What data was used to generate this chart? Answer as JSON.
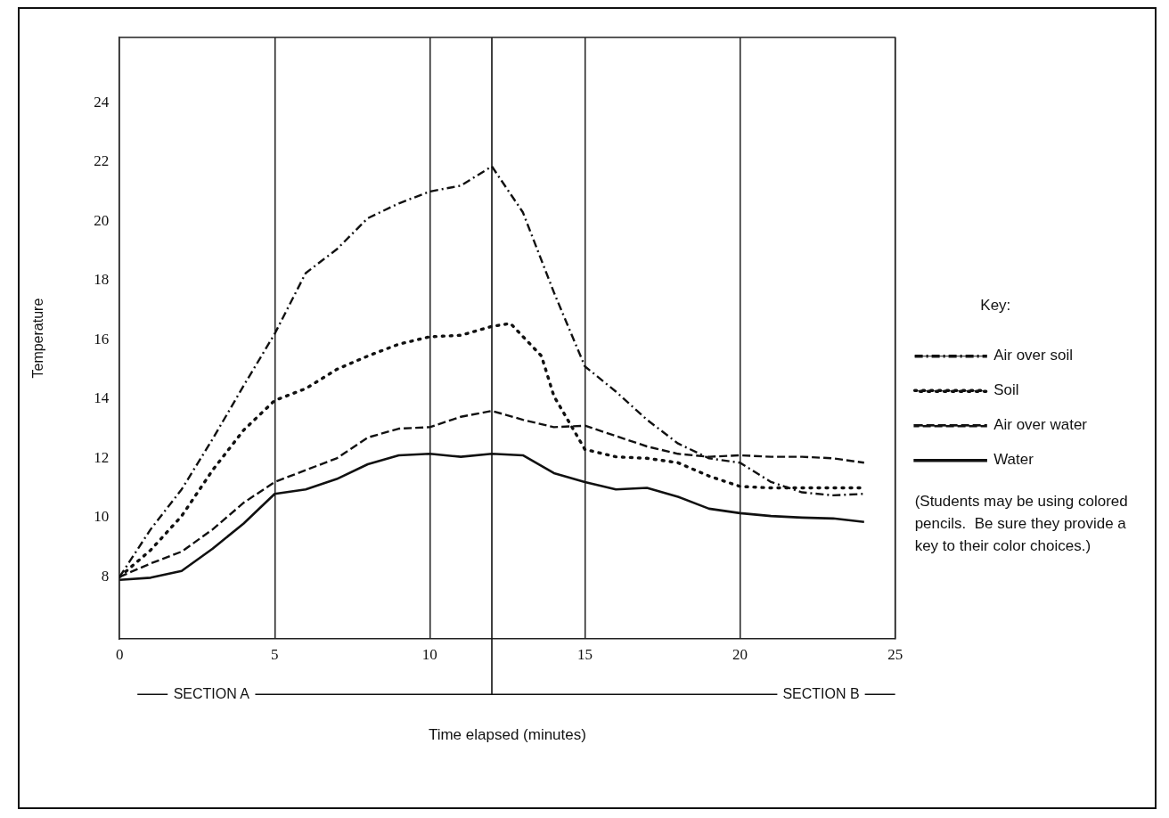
{
  "chart_data": {
    "type": "line",
    "xlabel": "Time elapsed (minutes)",
    "ylabel": "Temperature",
    "legend_title": "Key:",
    "legend": "right",
    "grid": "x",
    "marker": "none",
    "x": [
      0,
      1,
      2,
      3,
      4,
      5,
      6,
      7,
      8,
      9,
      10,
      11,
      12,
      13,
      14,
      15,
      16,
      17,
      18,
      19,
      20,
      21,
      22,
      23,
      24
    ],
    "xlim": [
      0,
      25
    ],
    "xticks": [
      0,
      5,
      10,
      15,
      20,
      25
    ],
    "ylim": [
      5.9,
      26.2
    ],
    "yticks": [
      8,
      10,
      12,
      14,
      16,
      18,
      20,
      22,
      24
    ],
    "series": [
      {
        "name": "Air over soil",
        "color": "#111111",
        "line_style": "dashdot",
        "values": [
          8,
          9.6,
          10.95,
          12.65,
          14.45,
          16.2,
          18.25,
          19.05,
          20.1,
          20.6,
          21.0,
          21.2,
          21.85,
          20.3,
          17.6,
          15.1,
          14.25,
          13.3,
          12.5,
          12.0,
          11.85,
          11.2,
          10.85,
          10.75,
          10.8
        ]
      },
      {
        "name": "Soil",
        "color": "#111111",
        "line_style": "dotted",
        "x": [
          0,
          1,
          2,
          3,
          4,
          5,
          6,
          7,
          8,
          9,
          10,
          11,
          12,
          12.6,
          13.6,
          14,
          14.5,
          15,
          16,
          17,
          18,
          19,
          20,
          21,
          22,
          23,
          24
        ],
        "values": [
          8,
          8.9,
          10.05,
          11.6,
          12.95,
          13.95,
          14.35,
          15.0,
          15.45,
          15.85,
          16.1,
          16.15,
          16.45,
          16.55,
          15.45,
          14.1,
          13.2,
          12.3,
          12.05,
          12.0,
          11.85,
          11.4,
          11.05,
          11.0,
          11.0,
          11.0,
          11.0
        ]
      },
      {
        "name": "Air over water",
        "color": "#111111",
        "line_style": "dashed",
        "values": [
          8,
          8.45,
          8.85,
          9.6,
          10.5,
          11.2,
          11.6,
          12.0,
          12.7,
          13.0,
          13.05,
          13.4,
          13.6,
          13.3,
          13.05,
          13.1,
          12.75,
          12.4,
          12.15,
          12.05,
          12.1,
          12.05,
          12.05,
          12.0,
          11.85
        ]
      },
      {
        "name": "Water",
        "color": "#111111",
        "line_style": "solid",
        "values": [
          7.9,
          7.97,
          8.2,
          8.95,
          9.8,
          10.8,
          10.95,
          11.3,
          11.8,
          12.1,
          12.15,
          12.05,
          12.15,
          12.1,
          11.5,
          11.2,
          10.95,
          11.0,
          10.7,
          10.3,
          10.15,
          10.05,
          10.0,
          9.97,
          9.85
        ]
      }
    ],
    "ref_lines": [
      {
        "axis": "x",
        "value": 12,
        "color": "#111111",
        "line_style": "solid"
      }
    ],
    "annotations": [
      "SECTION A",
      "SECTION B",
      "(Students may be using colored pencils.  Be sure they provide a key to their color choices.)"
    ]
  }
}
